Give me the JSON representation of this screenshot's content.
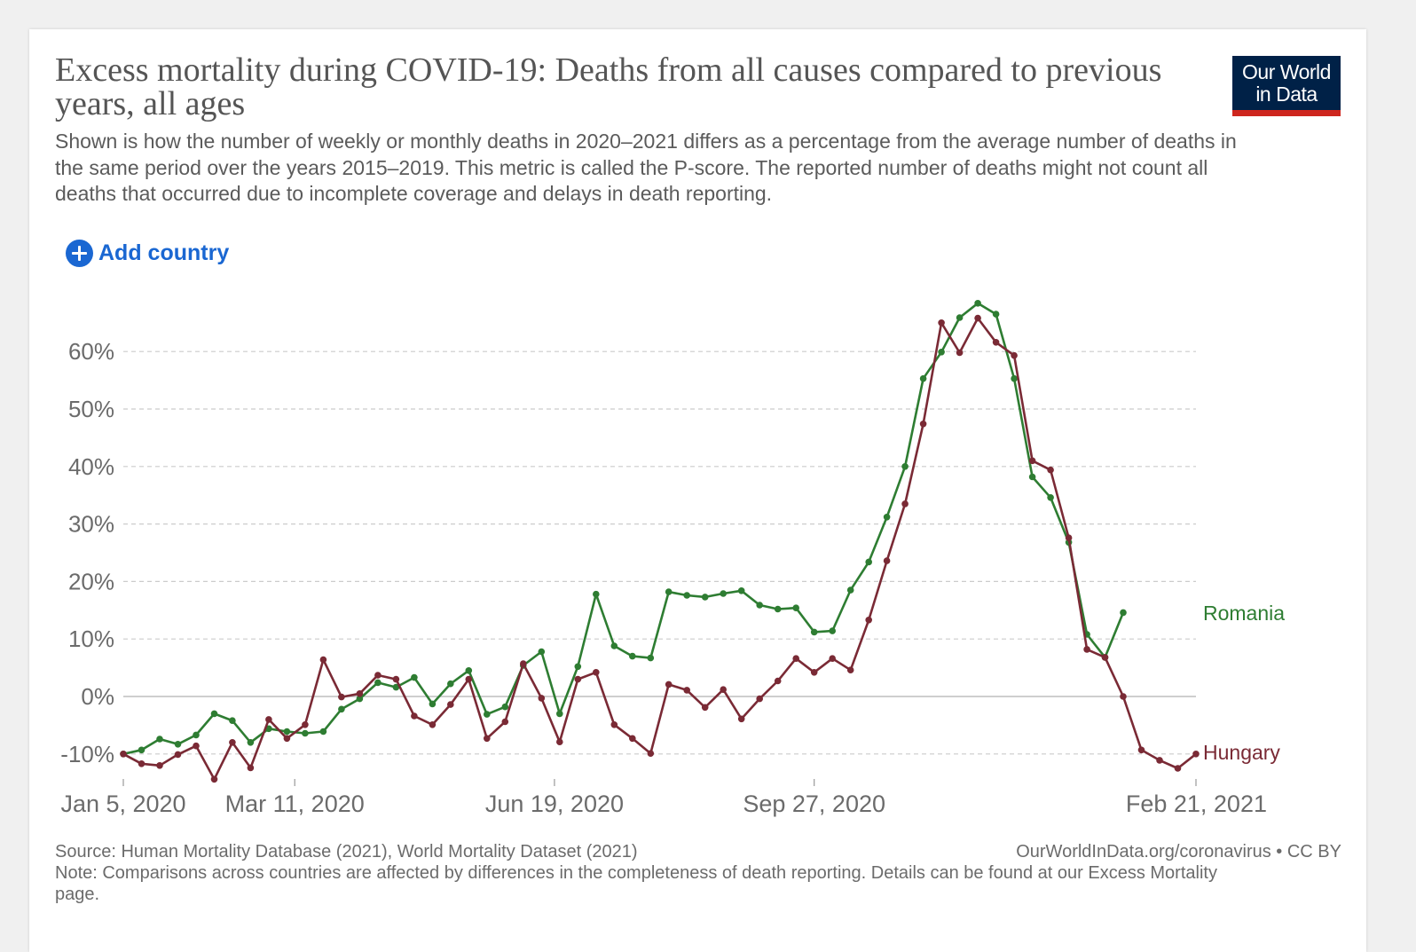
{
  "title": "Excess mortality during COVID-19: Deaths from all causes compared to previous years, all ages",
  "subtitle": "Shown is how the number of weekly or monthly deaths in 2020–2021 differs as a percentage from the average number of deaths in the same period over the years 2015–2019. This metric is called the P-score. The reported number of deaths might not count all deaths that occurred due to incomplete coverage and delays in death reporting.",
  "logo": {
    "line1": "Our World",
    "line2": "in Data"
  },
  "controls": {
    "add_country_label": "Add country"
  },
  "footer": {
    "source": "Source: Human Mortality Database (2021), World Mortality Dataset (2021)",
    "license": "OurWorldInData.org/coronavirus • CC BY",
    "note": "Note: Comparisons across countries are affected by differences in the completeness of death reporting. Details can be found at our Excess Mortality page."
  },
  "colors": {
    "romania": "#2e7d32",
    "hungary": "#7a2a35",
    "grid": "#cccccc",
    "zero_line": "#bdbdbd",
    "axis_text": "#6b6b6b"
  },
  "chart_data": {
    "type": "line",
    "title": "",
    "xlabel": "",
    "ylabel": "",
    "ylim": [
      -10,
      65
    ],
    "y_ticks": [
      "-10%",
      "0%",
      "10%",
      "20%",
      "30%",
      "40%",
      "50%",
      "60%"
    ],
    "x_ticks": [
      "Jan 5, 2020",
      "Mar 11, 2020",
      "Jun 19, 2020",
      "Sep 27, 2020",
      "Feb 21, 2021"
    ],
    "x_start": "Jan 5, 2020",
    "x_end": "Feb 21, 2021",
    "grid": "horizontal dashed",
    "legend": "inline labels at line ends",
    "series": [
      {
        "name": "Romania",
        "color": "#2e7d32",
        "x": [
          "2020-01-05",
          "2020-01-12",
          "2020-01-19",
          "2020-01-26",
          "2020-02-02",
          "2020-02-09",
          "2020-02-16",
          "2020-02-23",
          "2020-03-01",
          "2020-03-08",
          "2020-03-15",
          "2020-03-22",
          "2020-03-29",
          "2020-04-05",
          "2020-04-12",
          "2020-04-19",
          "2020-04-26",
          "2020-05-03",
          "2020-05-10",
          "2020-05-17",
          "2020-05-24",
          "2020-05-31",
          "2020-06-07",
          "2020-06-14",
          "2020-06-21",
          "2020-06-28",
          "2020-07-05",
          "2020-07-12",
          "2020-07-19",
          "2020-07-26",
          "2020-08-02",
          "2020-08-09",
          "2020-08-16",
          "2020-08-23",
          "2020-08-30",
          "2020-09-06",
          "2020-09-13",
          "2020-09-20",
          "2020-09-27",
          "2020-10-04",
          "2020-10-11",
          "2020-10-18",
          "2020-10-25",
          "2020-11-01",
          "2020-11-08",
          "2020-11-15",
          "2020-11-22",
          "2020-11-29",
          "2020-12-06",
          "2020-12-13",
          "2020-12-20",
          "2020-12-27",
          "2021-01-03",
          "2021-01-10",
          "2021-01-17",
          "2021-01-24"
        ],
        "values": [
          -10,
          -9.3,
          -7.4,
          -8.3,
          -6.7,
          -3,
          -4.2,
          -8,
          -5.6,
          -6.1,
          -6.4,
          -6.1,
          -2.2,
          -0.4,
          2.4,
          1.6,
          3.3,
          -1.3,
          2.2,
          4.5,
          -3.1,
          -1.8,
          5.4,
          7.8,
          -3,
          5.2,
          17.8,
          8.8,
          7,
          6.7,
          18.2,
          17.6,
          17.3,
          17.9,
          18.4,
          15.9,
          15.2,
          15.4,
          11.2,
          11.4,
          18.5,
          23.4,
          31.2,
          40,
          55.3,
          59.9,
          65.9,
          68.4,
          66.5,
          55.3,
          38.2,
          34.6,
          26.8,
          10.8,
          6.8,
          14.6
        ]
      },
      {
        "name": "Hungary",
        "color": "#7a2a35",
        "x": [
          "2020-01-05",
          "2020-01-12",
          "2020-01-19",
          "2020-01-26",
          "2020-02-02",
          "2020-02-09",
          "2020-02-16",
          "2020-02-23",
          "2020-03-01",
          "2020-03-08",
          "2020-03-15",
          "2020-03-22",
          "2020-03-29",
          "2020-04-05",
          "2020-04-12",
          "2020-04-19",
          "2020-04-26",
          "2020-05-03",
          "2020-05-10",
          "2020-05-17",
          "2020-05-24",
          "2020-05-31",
          "2020-06-07",
          "2020-06-14",
          "2020-06-21",
          "2020-06-28",
          "2020-07-05",
          "2020-07-12",
          "2020-07-19",
          "2020-07-26",
          "2020-08-02",
          "2020-08-09",
          "2020-08-16",
          "2020-08-23",
          "2020-08-30",
          "2020-09-06",
          "2020-09-13",
          "2020-09-20",
          "2020-09-27",
          "2020-10-04",
          "2020-10-11",
          "2020-10-18",
          "2020-10-25",
          "2020-11-01",
          "2020-11-08",
          "2020-11-15",
          "2020-11-22",
          "2020-11-29",
          "2020-12-06",
          "2020-12-13",
          "2020-12-20",
          "2020-12-27",
          "2021-01-03",
          "2021-01-10",
          "2021-01-17",
          "2021-01-24",
          "2021-01-31",
          "2021-02-07",
          "2021-02-14",
          "2021-02-21"
        ],
        "values": [
          -10,
          -11.7,
          -12,
          -10.1,
          -8.6,
          -14.4,
          -8,
          -12.4,
          -4,
          -7.3,
          -4.9,
          6.4,
          -0.1,
          0.5,
          3.7,
          3,
          -3.4,
          -4.9,
          -1.4,
          3,
          -7.3,
          -4.4,
          5.7,
          -0.3,
          -7.9,
          3,
          4.2,
          -4.9,
          -7.3,
          -9.9,
          2.1,
          1.1,
          -1.9,
          1.2,
          -3.9,
          -0.4,
          2.7,
          6.6,
          4.2,
          6.6,
          4.6,
          13.3,
          23.6,
          33.5,
          47.4,
          65,
          59.8,
          65.8,
          61.6,
          59.3,
          41,
          39.4,
          27.6,
          8.2,
          6.8,
          0,
          -9.3,
          -11.1,
          -12.5,
          -10
        ]
      }
    ]
  }
}
